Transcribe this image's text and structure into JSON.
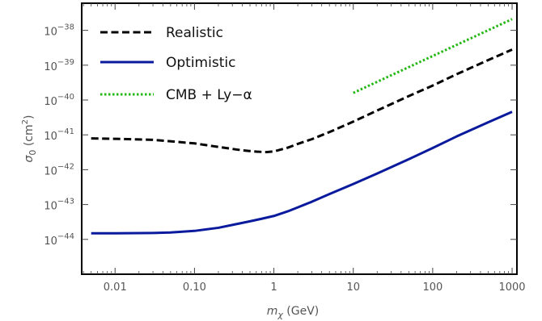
{
  "chart_data": {
    "type": "line",
    "xlabel": "m_χ (GeV)",
    "ylabel": "σ_0 (cm^2)",
    "xscale": "log",
    "yscale": "log",
    "xlim": [
      0.0038,
      1150
    ],
    "ylim": [
      1e-45,
      6e-38
    ],
    "grid": false,
    "legend_position": "top-left",
    "x_ticks": [
      0.01,
      0.1,
      1,
      10,
      100,
      1000
    ],
    "x_tick_labels": [
      "0.01",
      "0.10",
      "1",
      "10",
      "100",
      "1000"
    ],
    "y_ticks": [
      1e-44,
      1e-43,
      1e-42,
      1e-41,
      1e-40,
      1e-39,
      1e-38
    ],
    "y_tick_labels": [
      {
        "base": "10",
        "exp": "−44"
      },
      {
        "base": "10",
        "exp": "−43"
      },
      {
        "base": "10",
        "exp": "−42"
      },
      {
        "base": "10",
        "exp": "−41"
      },
      {
        "base": "10",
        "exp": "−40"
      },
      {
        "base": "10",
        "exp": "−39"
      },
      {
        "base": "10",
        "exp": "−38"
      }
    ],
    "series": [
      {
        "name": "Realistic",
        "style": "dashed",
        "color": "#000000",
        "x": [
          0.005,
          0.01,
          0.03,
          0.1,
          0.2,
          0.4,
          0.6,
          0.8,
          1.0,
          1.5,
          2,
          3,
          5,
          10,
          20,
          50,
          100,
          200,
          500,
          1000
        ],
        "y": [
          7.9e-42,
          7.7e-42,
          7.2e-42,
          5.7e-42,
          4.5e-42,
          3.6e-42,
          3.3e-42,
          3.2e-42,
          3.35e-42,
          4.3e-42,
          5.5e-42,
          7.5e-42,
          1.2e-41,
          2.4e-41,
          5e-41,
          1.3e-40,
          2.6e-40,
          5.5e-40,
          1.4e-39,
          2.8e-39
        ]
      },
      {
        "name": "Optimistic",
        "style": "solid",
        "color": "#0a1a9c",
        "x": [
          0.005,
          0.01,
          0.03,
          0.05,
          0.1,
          0.2,
          0.3,
          0.5,
          0.7,
          1.0,
          1.5,
          2,
          3,
          5,
          10,
          20,
          50,
          100,
          200,
          500,
          1000
        ],
        "y": [
          1.5e-44,
          1.5e-44,
          1.53e-44,
          1.58e-44,
          1.75e-44,
          2.15e-44,
          2.6e-44,
          3.3e-44,
          3.9e-44,
          4.7e-44,
          6.4e-44,
          8.3e-44,
          1.2e-43,
          2e-43,
          3.9e-43,
          7.8e-43,
          2e-42,
          4.2e-42,
          9e-42,
          2.3e-41,
          4.6e-41
        ]
      },
      {
        "name": "CMB + Ly−α",
        "style": "dotted",
        "color": "#22b811",
        "x": [
          10,
          1000
        ],
        "y": [
          1.6e-40,
          2.1e-38
        ]
      }
    ]
  }
}
